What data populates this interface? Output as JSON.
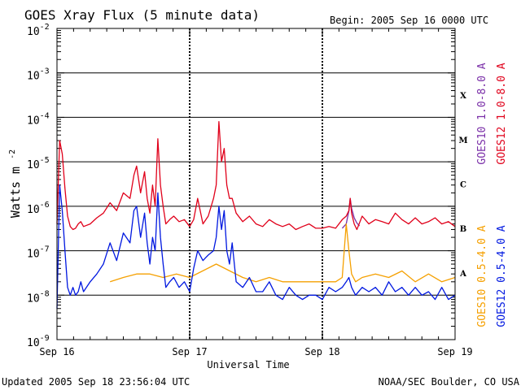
{
  "header": {
    "title": "GOES Xray Flux (5 minute data)",
    "begin": "Begin:  2005 Sep 16 0000 UTC"
  },
  "footer": {
    "updated": "Updated 2005 Sep 18 23:56:04 UTC",
    "credit": "NOAA/SEC Boulder, CO USA"
  },
  "colors": {
    "goes10_long": "#7a2fa8",
    "goes12_long": "#e0001a",
    "goes10_short": "#f5a000",
    "goes12_short": "#0018e0",
    "gridline": "#000000"
  },
  "chart_data": {
    "type": "line",
    "title": "GOES Xray Flux (5 minute data)",
    "xlabel": "Universal Time",
    "ylabel": "Watts m",
    "ylabel_sup": "-2",
    "yscale": "log",
    "ylim": [
      1e-09,
      0.01
    ],
    "xlim": [
      0,
      3
    ],
    "x_units": "days since 2005 Sep 16 0000 UTC",
    "x_ticks": [
      {
        "x": 0,
        "label": "Sep 16"
      },
      {
        "x": 1,
        "label": "Sep 17"
      },
      {
        "x": 2,
        "label": "Sep 18"
      },
      {
        "x": 3,
        "label": "Sep 19"
      }
    ],
    "y_ticks": [
      {
        "exp": -2,
        "base": "10",
        "sup": "-2"
      },
      {
        "exp": -3,
        "base": "10",
        "sup": "-3"
      },
      {
        "exp": -4,
        "base": "10",
        "sup": "-4"
      },
      {
        "exp": -5,
        "base": "10",
        "sup": "-5"
      },
      {
        "exp": -6,
        "base": "10",
        "sup": "-6"
      },
      {
        "exp": -7,
        "base": "10",
        "sup": "-7"
      },
      {
        "exp": -8,
        "base": "10",
        "sup": "-8"
      },
      {
        "exp": -9,
        "base": "10",
        "sup": "-9"
      }
    ],
    "hgrid_exps": [
      -3,
      -4,
      -5,
      -6,
      -7,
      -8
    ],
    "flare_classes": [
      {
        "label": "X",
        "exp": -3.5
      },
      {
        "label": "M",
        "exp": -4.5
      },
      {
        "label": "C",
        "exp": -5.5
      },
      {
        "label": "B",
        "exp": -6.5
      },
      {
        "label": "A",
        "exp": -7.5
      }
    ],
    "legend": [
      {
        "name": "GOES10 1.0-8.0 A",
        "color": "#7a2fa8"
      },
      {
        "name": "GOES12 1.0-8.0 A",
        "color": "#e0001a"
      },
      {
        "name": "GOES10 0.5-4.0 A",
        "color": "#f5a000"
      },
      {
        "name": "GOES12 0.5-4.0 A",
        "color": "#0018e0"
      }
    ],
    "series": [
      {
        "name": "GOES10 1.0-8.0 A",
        "color": "#7a2fa8",
        "x": [
          2.15,
          2.18,
          2.2,
          2.21,
          2.22,
          2.24,
          2.26,
          2.28
        ],
        "y": [
          3.2e-07,
          4e-07,
          8e-07,
          1.5e-06,
          9e-07,
          5.5e-07,
          4.2e-07,
          3.6e-07
        ]
      },
      {
        "name": "GOES12 1.0-8.0 A",
        "color": "#e0001a",
        "x": [
          0.0,
          0.02,
          0.04,
          0.06,
          0.08,
          0.1,
          0.12,
          0.14,
          0.16,
          0.18,
          0.2,
          0.25,
          0.3,
          0.35,
          0.4,
          0.45,
          0.5,
          0.55,
          0.58,
          0.6,
          0.63,
          0.66,
          0.68,
          0.7,
          0.72,
          0.74,
          0.76,
          0.78,
          0.8,
          0.82,
          0.85,
          0.88,
          0.92,
          0.96,
          1.0,
          1.03,
          1.06,
          1.1,
          1.14,
          1.18,
          1.2,
          1.22,
          1.24,
          1.26,
          1.28,
          1.3,
          1.32,
          1.35,
          1.4,
          1.45,
          1.5,
          1.55,
          1.6,
          1.65,
          1.7,
          1.75,
          1.8,
          1.85,
          1.9,
          1.95,
          2.0,
          2.05,
          2.1,
          2.15,
          2.18,
          2.2,
          2.21,
          2.22,
          2.24,
          2.26,
          2.3,
          2.35,
          2.4,
          2.45,
          2.5,
          2.55,
          2.6,
          2.65,
          2.7,
          2.75,
          2.8,
          2.85,
          2.9,
          2.95,
          3.0
        ],
        "y": [
          4e-07,
          3e-05,
          1.5e-05,
          2.5e-06,
          6e-07,
          3.5e-07,
          3e-07,
          3.2e-07,
          4e-07,
          4.5e-07,
          3.5e-07,
          4e-07,
          5.5e-07,
          7e-07,
          1.2e-06,
          8e-07,
          2e-06,
          1.5e-06,
          5e-06,
          8e-06,
          2e-06,
          6e-06,
          1.5e-06,
          7e-07,
          3e-06,
          1e-06,
          3.3e-05,
          3e-06,
          1e-06,
          4e-07,
          5e-07,
          6e-07,
          4.5e-07,
          5e-07,
          3.5e-07,
          5e-07,
          1.5e-06,
          4e-07,
          6e-07,
          1.5e-06,
          3e-06,
          8e-05,
          1e-05,
          2e-05,
          3e-06,
          1.5e-06,
          1.5e-06,
          7e-07,
          4.5e-07,
          6e-07,
          4e-07,
          3.5e-07,
          5e-07,
          4e-07,
          3.5e-07,
          4e-07,
          3e-07,
          3.5e-07,
          4e-07,
          3.2e-07,
          3.2e-07,
          3.5e-07,
          3.2e-07,
          5e-07,
          6e-07,
          8e-07,
          1.5e-06,
          7e-07,
          4e-07,
          3e-07,
          6e-07,
          4e-07,
          5e-07,
          4.5e-07,
          4e-07,
          7e-07,
          5e-07,
          4e-07,
          5.5e-07,
          4e-07,
          4.5e-07,
          5.5e-07,
          4e-07,
          4.5e-07,
          3.5e-07
        ]
      },
      {
        "name": "GOES10 0.5-4.0 A",
        "color": "#f5a000",
        "x": [
          0.4,
          0.5,
          0.6,
          0.7,
          0.8,
          0.9,
          1.0,
          1.2,
          1.4,
          1.5,
          1.6,
          1.7,
          1.8,
          1.9,
          2.0,
          2.1,
          2.15,
          2.18,
          2.2,
          2.22,
          2.25,
          2.3,
          2.4,
          2.5,
          2.6,
          2.7,
          2.8,
          2.9,
          3.0
        ],
        "y": [
          2e-08,
          2.5e-08,
          3e-08,
          3e-08,
          2.5e-08,
          3e-08,
          2.5e-08,
          5e-08,
          2.5e-08,
          2e-08,
          2.5e-08,
          2e-08,
          2e-08,
          2e-08,
          2e-08,
          2e-08,
          2.5e-08,
          4e-07,
          1e-07,
          3e-08,
          2e-08,
          2.5e-08,
          3e-08,
          2.5e-08,
          3.5e-08,
          2e-08,
          3e-08,
          2e-08,
          2.5e-08
        ]
      },
      {
        "name": "GOES12 0.5-4.0 A",
        "color": "#0018e0",
        "x": [
          0.0,
          0.02,
          0.04,
          0.06,
          0.08,
          0.1,
          0.12,
          0.14,
          0.16,
          0.18,
          0.2,
          0.25,
          0.3,
          0.35,
          0.4,
          0.45,
          0.5,
          0.55,
          0.58,
          0.6,
          0.63,
          0.66,
          0.68,
          0.7,
          0.72,
          0.74,
          0.76,
          0.78,
          0.8,
          0.82,
          0.85,
          0.88,
          0.92,
          0.96,
          1.0,
          1.03,
          1.06,
          1.1,
          1.14,
          1.18,
          1.2,
          1.22,
          1.24,
          1.26,
          1.28,
          1.3,
          1.32,
          1.35,
          1.4,
          1.45,
          1.5,
          1.55,
          1.6,
          1.65,
          1.7,
          1.75,
          1.8,
          1.85,
          1.9,
          1.95,
          2.0,
          2.05,
          2.1,
          2.15,
          2.18,
          2.2,
          2.22,
          2.25,
          2.3,
          2.35,
          2.4,
          2.45,
          2.5,
          2.55,
          2.6,
          2.65,
          2.7,
          2.75,
          2.8,
          2.85,
          2.9,
          2.95,
          3.0
        ],
        "y": [
          5e-09,
          3e-06,
          8e-07,
          1e-07,
          1.5e-08,
          1e-08,
          1.5e-08,
          1e-08,
          1.2e-08,
          2e-08,
          1.2e-08,
          2e-08,
          3e-08,
          5e-08,
          1.5e-07,
          6e-08,
          2.5e-07,
          1.5e-07,
          8e-07,
          1e-06,
          2e-07,
          7e-07,
          1.5e-07,
          5e-08,
          2e-07,
          1e-07,
          2e-06,
          2e-07,
          5e-08,
          1.5e-08,
          2e-08,
          2.5e-08,
          1.5e-08,
          2e-08,
          1.2e-08,
          4e-08,
          1e-07,
          6e-08,
          8e-08,
          1e-07,
          2e-07,
          1e-06,
          3e-07,
          8e-07,
          1e-07,
          5e-08,
          1.5e-07,
          2e-08,
          1.5e-08,
          2.5e-08,
          1.2e-08,
          1.2e-08,
          2e-08,
          1e-08,
          8e-09,
          1.5e-08,
          1e-08,
          8e-09,
          1e-08,
          1e-08,
          8e-09,
          1.5e-08,
          1.2e-08,
          1.5e-08,
          2e-08,
          2.5e-08,
          1.5e-08,
          1e-08,
          1.5e-08,
          1.2e-08,
          1.5e-08,
          1e-08,
          2e-08,
          1.2e-08,
          1.5e-08,
          1e-08,
          1.5e-08,
          1e-08,
          1.2e-08,
          8e-09,
          1.5e-08,
          8e-09,
          1e-08
        ]
      }
    ]
  }
}
